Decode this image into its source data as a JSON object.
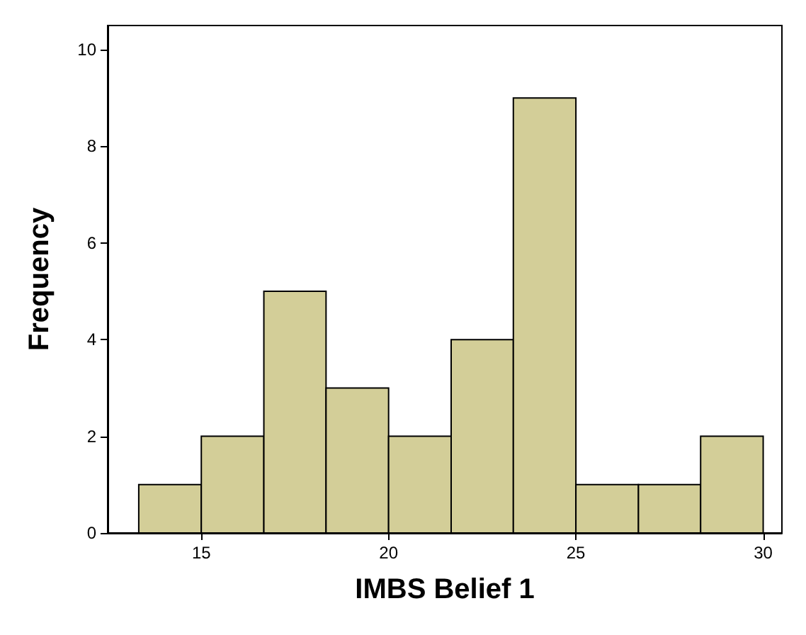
{
  "chart_data": {
    "type": "histogram",
    "xlabel": "IMBS Belief 1",
    "ylabel": "Frequency",
    "bins": [
      13.33,
      15,
      16.67,
      18.33,
      20,
      21.67,
      23.33,
      25,
      26.67,
      28.33,
      30
    ],
    "values": [
      1,
      2,
      5,
      3,
      2,
      4,
      9,
      1,
      1,
      2
    ],
    "color": "#d3ce98",
    "xlim": [
      12.5,
      30.5
    ],
    "xticks": [
      15,
      20,
      25,
      30
    ],
    "ylim": [
      0,
      10.5
    ],
    "yticks": [
      0,
      2,
      4,
      6,
      8,
      10
    ]
  }
}
